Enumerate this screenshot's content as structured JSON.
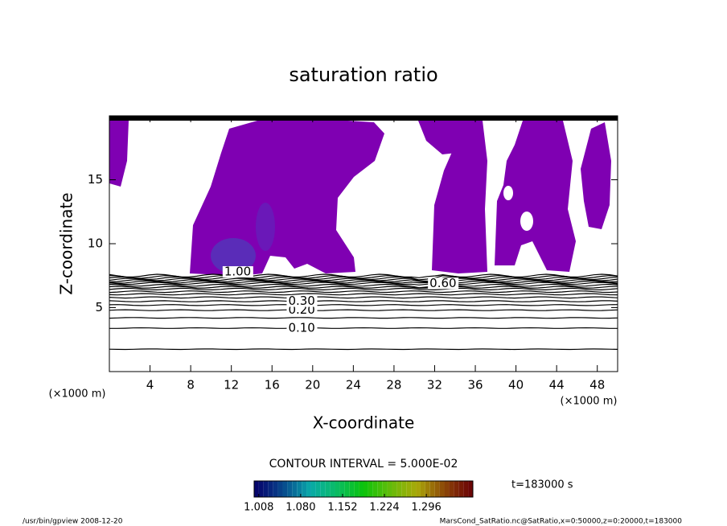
{
  "chart_data": {
    "type": "contour",
    "title": "saturation ratio",
    "xlabel": "X-coordinate",
    "ylabel": "Z-coordinate",
    "x_unit_labels": [
      "(×1000 m)",
      "(×1000 m)"
    ],
    "xlim": [
      0,
      50
    ],
    "ylim": [
      0,
      20
    ],
    "xticks": [
      4,
      8,
      12,
      16,
      20,
      24,
      28,
      32,
      36,
      40,
      44,
      48
    ],
    "yticks": [
      5,
      10,
      15
    ],
    "contours": [
      {
        "level": 0.05,
        "z": 1.75
      },
      {
        "level": 0.1,
        "z": 3.4
      },
      {
        "level": 0.15,
        "z": 4.2
      },
      {
        "level": 0.2,
        "z": 4.8
      },
      {
        "level": 0.25,
        "z": 5.2
      },
      {
        "level": 0.3,
        "z": 5.5
      },
      {
        "level": 0.35,
        "z": 5.8
      },
      {
        "level": 0.4,
        "z": 6.05
      },
      {
        "level": 0.45,
        "z": 6.25
      },
      {
        "level": 0.5,
        "z": 6.45
      },
      {
        "level": 0.55,
        "z": 6.6
      },
      {
        "level": 0.6,
        "z": 6.75
      },
      {
        "level": 0.65,
        "z": 6.9
      },
      {
        "level": 0.7,
        "z": 7.0
      },
      {
        "level": 0.75,
        "z": 7.1
      },
      {
        "level": 0.8,
        "z": 7.2
      },
      {
        "level": 0.85,
        "z": 7.3
      },
      {
        "level": 0.9,
        "z": 7.4
      },
      {
        "level": 0.95,
        "z": 7.5
      }
    ],
    "contour_labels": [
      {
        "value": 0.1,
        "label": "0.10",
        "x": 17.6,
        "z": 3.4
      },
      {
        "value": 0.2,
        "label": "0.20",
        "x": 17.6,
        "z": 4.8
      },
      {
        "value": 0.3,
        "label": "0.30",
        "x": 17.6,
        "z": 5.5
      },
      {
        "value": 0.6,
        "label": "0.60",
        "x": 31.5,
        "z": 6.9
      },
      {
        "value": 1.0,
        "label": "1.00",
        "x": 11.3,
        "z": 7.8
      }
    ],
    "contour_interval": "CONTOUR INTERVAL = 5.000E-02",
    "clim": [
      1.0,
      1.376
    ],
    "colorbar_ticks": [
      {
        "value": 1.008,
        "label": "1.008"
      },
      {
        "value": 1.08,
        "label": "1.080"
      },
      {
        "value": 1.152,
        "label": "1.152"
      },
      {
        "value": 1.224,
        "label": "1.224"
      },
      {
        "value": 1.296,
        "label": "1.296"
      }
    ],
    "time_label": "t=183000 s",
    "footer_left": "/usr/bin/gpview  2008-12-20",
    "footer_right": "MarsCond_SatRatio.nc@SatRatio,x=0:50000,z=0:20000,t=183000",
    "fill_color": "#7f00b2",
    "line_color": "#000000"
  }
}
